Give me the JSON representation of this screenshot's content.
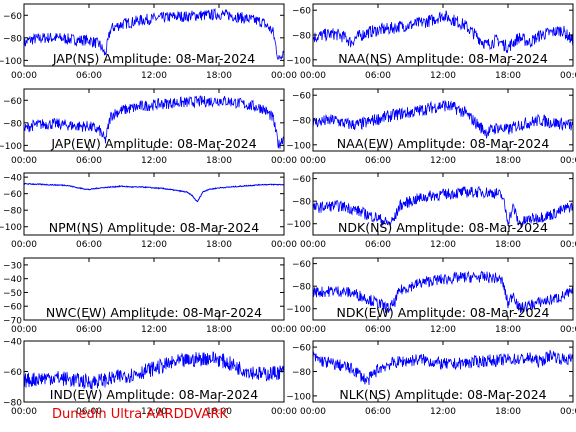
{
  "footer": "Dunedin Ultra AARDDVARK",
  "colors": {
    "trace": "#0000ff",
    "axis": "#000000",
    "footer": "#e60000"
  },
  "chart_data": [
    {
      "type": "line",
      "title": "JAP(NS) Amplitude: 08-Mar-2024",
      "xticks": [
        "00:00",
        "06:00",
        "12:00",
        "18:00",
        "00:00"
      ],
      "xlim": [
        0,
        24
      ],
      "ylim": [
        -105,
        -50
      ],
      "yticks": [
        -100,
        -80,
        -60
      ],
      "series": [
        {
          "x": [
            0,
            0.5,
            1,
            2,
            3,
            4,
            5,
            6,
            7,
            7.5,
            8,
            8.5,
            9,
            10,
            11,
            12,
            13,
            14,
            15,
            16,
            17,
            18,
            19,
            20,
            21,
            22,
            22.5,
            23,
            23.5,
            24
          ],
          "values": [
            -85,
            -82,
            -81,
            -80,
            -80,
            -81,
            -82,
            -82,
            -86,
            -95,
            -72,
            -70,
            -68,
            -66,
            -64,
            -63,
            -62,
            -61,
            -61,
            -60,
            -60,
            -59,
            -60,
            -62,
            -64,
            -66,
            -70,
            -75,
            -100,
            -90
          ]
        }
      ]
    },
    {
      "type": "line",
      "title": "NAA(NS) Amplitude: 08-Mar-2024",
      "xticks": [
        "00:00",
        "06:00",
        "12:00",
        "18:00",
        "00:00"
      ],
      "xlim": [
        0,
        24
      ],
      "ylim": [
        -105,
        -55
      ],
      "yticks": [
        -100,
        -80,
        -60
      ],
      "series": [
        {
          "x": [
            0,
            1,
            2,
            3,
            3.5,
            4,
            5,
            6,
            7,
            8,
            9,
            10,
            11,
            12,
            13,
            14,
            15,
            16,
            17,
            18,
            19,
            20,
            21,
            22,
            23,
            24
          ],
          "values": [
            -82,
            -80,
            -79,
            -82,
            -86,
            -82,
            -78,
            -76,
            -75,
            -73,
            -72,
            -70,
            -68,
            -64,
            -68,
            -72,
            -80,
            -88,
            -84,
            -90,
            -82,
            -86,
            -80,
            -78,
            -76,
            -85
          ]
        }
      ]
    },
    {
      "type": "line",
      "title": "JAP(EW) Amplitude: 08-Mar-2024",
      "xticks": [
        "00:00",
        "06:00",
        "12:00",
        "18:00",
        "00:00"
      ],
      "xlim": [
        0,
        24
      ],
      "ylim": [
        -105,
        -50
      ],
      "yticks": [
        -100,
        -80,
        -60
      ],
      "series": [
        {
          "x": [
            0,
            0.5,
            1,
            2,
            3,
            4,
            5,
            6,
            7,
            7.5,
            8,
            8.5,
            9,
            10,
            11,
            12,
            13,
            14,
            15,
            16,
            17,
            18,
            19,
            20,
            21,
            22,
            22.5,
            23,
            23.5,
            24
          ],
          "values": [
            -86,
            -83,
            -82,
            -81,
            -81,
            -82,
            -83,
            -83,
            -87,
            -96,
            -74,
            -71,
            -69,
            -67,
            -65,
            -64,
            -63,
            -62,
            -62,
            -61,
            -61,
            -60,
            -61,
            -63,
            -65,
            -67,
            -71,
            -76,
            -100,
            -92
          ]
        }
      ]
    },
    {
      "type": "line",
      "title": "NAA(EW) Amplitude: 08-Mar-2024",
      "xticks": [
        "00:00",
        "06:00",
        "12:00",
        "18:00",
        "00:00"
      ],
      "xlim": [
        0,
        24
      ],
      "ylim": [
        -105,
        -55
      ],
      "yticks": [
        -100,
        -80,
        -60
      ],
      "series": [
        {
          "x": [
            0,
            1,
            2,
            3,
            4,
            5,
            6,
            7,
            8,
            9,
            10,
            11,
            12,
            13,
            14,
            15,
            16,
            17,
            18,
            19,
            20,
            21,
            22,
            23,
            24
          ],
          "values": [
            -82,
            -81,
            -80,
            -83,
            -84,
            -82,
            -79,
            -77,
            -75,
            -74,
            -72,
            -70,
            -68,
            -70,
            -74,
            -82,
            -90,
            -86,
            -88,
            -84,
            -82,
            -80,
            -82,
            -83,
            -85
          ]
        }
      ]
    },
    {
      "type": "line",
      "title": "NPM(NS) Amplitude: 08-Mar-2024",
      "xticks": [
        "00:00",
        "06:00",
        "12:00",
        "18:00",
        "00:00"
      ],
      "xlim": [
        0,
        24
      ],
      "ylim": [
        -110,
        -35
      ],
      "yticks": [
        -100,
        -80,
        -60,
        -40
      ],
      "series": [
        {
          "x": [
            0,
            2,
            4,
            5,
            6,
            7,
            8,
            9,
            10,
            11,
            12,
            13,
            14,
            15,
            15.5,
            16,
            16.5,
            17,
            18,
            19,
            20,
            21,
            22,
            23,
            24
          ],
          "values": [
            -48,
            -49,
            -50,
            -53,
            -55,
            -53,
            -52,
            -51,
            -52,
            -52,
            -53,
            -54,
            -56,
            -58,
            -62,
            -70,
            -58,
            -55,
            -53,
            -52,
            -51,
            -50,
            -49,
            -49,
            -49
          ]
        }
      ]
    },
    {
      "type": "line",
      "title": "NDK(NS) Amplitude: 08-Mar-2024",
      "xticks": [
        "00:00",
        "06:00",
        "12:00",
        "18:00",
        "00:00"
      ],
      "xlim": [
        0,
        24
      ],
      "ylim": [
        -110,
        -55
      ],
      "yticks": [
        -100,
        -80,
        -60
      ],
      "series": [
        {
          "x": [
            0,
            1,
            2,
            3,
            4,
            5,
            6,
            7,
            7.5,
            8,
            9,
            10,
            11,
            12,
            13,
            14,
            15,
            16,
            17,
            17.5,
            18,
            18.5,
            19,
            20,
            21,
            22,
            23,
            24
          ],
          "values": [
            -86,
            -85,
            -84,
            -85,
            -88,
            -92,
            -95,
            -100,
            -96,
            -84,
            -80,
            -77,
            -75,
            -74,
            -73,
            -72,
            -72,
            -72,
            -73,
            -76,
            -98,
            -85,
            -100,
            -96,
            -94,
            -92,
            -88,
            -84
          ]
        }
      ]
    },
    {
      "type": "line",
      "title": "NWC(EW) Amplitude: 08-Mar-2024",
      "xticks": [
        "00:00",
        "06:00",
        "12:00",
        "18:00",
        "00:00"
      ],
      "xlim": [
        0,
        24
      ],
      "ylim": [
        -70,
        -25
      ],
      "yticks": [
        -70,
        -60,
        -50,
        -40,
        -30
      ],
      "series": []
    },
    {
      "type": "line",
      "title": "NDK(EW) Amplitude: 08-Mar-2024",
      "xticks": [
        "00:00",
        "06:00",
        "12:00",
        "18:00",
        "00:00"
      ],
      "xlim": [
        0,
        24
      ],
      "ylim": [
        -110,
        -55
      ],
      "yticks": [
        -100,
        -80,
        -60
      ],
      "series": [
        {
          "x": [
            0,
            1,
            2,
            3,
            4,
            5,
            6,
            7,
            7.5,
            8,
            9,
            10,
            11,
            12,
            13,
            14,
            15,
            16,
            17,
            17.5,
            18,
            18.5,
            19,
            20,
            21,
            22,
            23,
            24
          ],
          "values": [
            -85,
            -85,
            -84,
            -85,
            -87,
            -91,
            -95,
            -100,
            -95,
            -84,
            -80,
            -77,
            -75,
            -74,
            -73,
            -72,
            -72,
            -72,
            -73,
            -76,
            -96,
            -86,
            -100,
            -97,
            -94,
            -92,
            -89,
            -85
          ]
        }
      ]
    },
    {
      "type": "line",
      "title": "IND(EW) Amplitude: 08-Mar-2024",
      "xticks": [
        "00:00",
        "06:00",
        "12:00",
        "18:00",
        "00:00"
      ],
      "xlim": [
        0,
        24
      ],
      "ylim": [
        -80,
        -40
      ],
      "yticks": [
        -80,
        -60,
        -40
      ],
      "series": [
        {
          "x": [
            0,
            1,
            2,
            3,
            4,
            5,
            6,
            7,
            8,
            9,
            10,
            11,
            12,
            13,
            14,
            15,
            16,
            17,
            18,
            19,
            20,
            21,
            22,
            23,
            24
          ],
          "values": [
            -66,
            -65,
            -64,
            -64,
            -65,
            -66,
            -67,
            -66,
            -65,
            -63,
            -62,
            -60,
            -58,
            -56,
            -54,
            -53,
            -52,
            -51,
            -52,
            -55,
            -58,
            -60,
            -62,
            -61,
            -60
          ]
        }
      ]
    },
    {
      "type": "line",
      "title": "NLK(NS) Amplitude: 08-Mar-2024",
      "xticks": [
        "00:00",
        "06:00",
        "12:00",
        "18:00",
        "00:00"
      ],
      "xlim": [
        0,
        24
      ],
      "ylim": [
        -105,
        -55
      ],
      "yticks": [
        -100,
        -80,
        -60
      ],
      "series": [
        {
          "x": [
            0,
            0.5,
            1,
            2,
            3,
            4,
            5,
            6,
            7,
            8,
            9,
            10,
            11,
            12,
            13,
            14,
            15,
            16,
            17,
            18,
            19,
            20,
            21,
            22,
            23,
            24
          ],
          "values": [
            -68,
            -70,
            -72,
            -74,
            -76,
            -80,
            -88,
            -78,
            -74,
            -72,
            -71,
            -70,
            -72,
            -74,
            -74,
            -73,
            -72,
            -71,
            -71,
            -70,
            -70,
            -69,
            -72,
            -66,
            -70,
            -70
          ]
        }
      ]
    }
  ]
}
